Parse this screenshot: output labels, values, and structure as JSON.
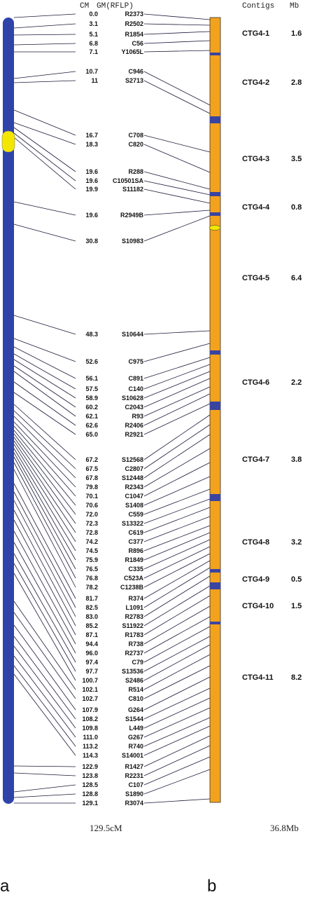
{
  "header": {
    "cm": "CM",
    "gm": "GM(RFLP)",
    "contigs": "Contigs",
    "mb": "Mb"
  },
  "colors": {
    "chromosome": "#2f43a8",
    "contig": "#f4a21d",
    "gap": "#3a44a0",
    "centromere": "#f3e600",
    "line": "#1a1a3a"
  },
  "markers": [
    {
      "cm": "0.0",
      "name": "R2373"
    },
    {
      "cm": "3.1",
      "name": "R2502"
    },
    {
      "cm": "5.1",
      "name": "R1854"
    },
    {
      "cm": "6.8",
      "name": "C56"
    },
    {
      "cm": "7.1",
      "name": "Y1065L"
    },
    {
      "cm": "10.7",
      "name": "C946"
    },
    {
      "cm": "11",
      "name": "S2713"
    },
    {
      "cm": "16.7",
      "name": "C708"
    },
    {
      "cm": "18.3",
      "name": "C820"
    },
    {
      "cm": "19.6",
      "name": "R288"
    },
    {
      "cm": "19.6",
      "name": "C10501SA"
    },
    {
      "cm": "19.9",
      "name": "S11182"
    },
    {
      "cm": "19.6",
      "name": "R2949B"
    },
    {
      "cm": "30.8",
      "name": "S10983"
    },
    {
      "cm": "48.3",
      "name": "S10644"
    },
    {
      "cm": "52.6",
      "name": "C975"
    },
    {
      "cm": "56.1",
      "name": "C891"
    },
    {
      "cm": "57.5",
      "name": "C140"
    },
    {
      "cm": "58.9",
      "name": "S10628"
    },
    {
      "cm": "60.2",
      "name": "C2043"
    },
    {
      "cm": "62.1",
      "name": "R93"
    },
    {
      "cm": "62.6",
      "name": "R2406"
    },
    {
      "cm": "65.0",
      "name": "R2921"
    },
    {
      "cm": "67.2",
      "name": "S12568"
    },
    {
      "cm": "67.5",
      "name": "C2807"
    },
    {
      "cm": "67.8",
      "name": "S12448"
    },
    {
      "cm": "79.8",
      "name": "R2343"
    },
    {
      "cm": "70.1",
      "name": "C1047"
    },
    {
      "cm": "70.6",
      "name": "S1408"
    },
    {
      "cm": "72.0",
      "name": "C559"
    },
    {
      "cm": "72.3",
      "name": "S13322"
    },
    {
      "cm": "72.8",
      "name": "C619"
    },
    {
      "cm": "74.2",
      "name": "C377"
    },
    {
      "cm": "74.5",
      "name": "R896"
    },
    {
      "cm": "75.9",
      "name": "R1849"
    },
    {
      "cm": "76.5",
      "name": "C335"
    },
    {
      "cm": "76.8",
      "name": "C523A"
    },
    {
      "cm": "78.2",
      "name": "C1238B"
    },
    {
      "cm": "81.7",
      "name": "R374"
    },
    {
      "cm": "82.5",
      "name": "L1091"
    },
    {
      "cm": "83.0",
      "name": "R2783"
    },
    {
      "cm": "85.2",
      "name": "S11922"
    },
    {
      "cm": "87.1",
      "name": "R1783"
    },
    {
      "cm": "94.4",
      "name": "R738"
    },
    {
      "cm": "96.0",
      "name": "R2737"
    },
    {
      "cm": "97.4",
      "name": "C79"
    },
    {
      "cm": "97.7",
      "name": "S13536"
    },
    {
      "cm": "100.7",
      "name": "S2486"
    },
    {
      "cm": "102.1",
      "name": "R514"
    },
    {
      "cm": "102.7",
      "name": "C810"
    },
    {
      "cm": "107.9",
      "name": "G264"
    },
    {
      "cm": "108.2",
      "name": "S1544"
    },
    {
      "cm": "109.8",
      "name": "L449"
    },
    {
      "cm": "111.0",
      "name": "G267"
    },
    {
      "cm": "113.2",
      "name": "R740"
    },
    {
      "cm": "114.3",
      "name": "S14001"
    },
    {
      "cm": "122.9",
      "name": "R1427"
    },
    {
      "cm": "123.8",
      "name": "R2231"
    },
    {
      "cm": "128.5",
      "name": "C107"
    },
    {
      "cm": "128.8",
      "name": "S1890"
    },
    {
      "cm": "129.1",
      "name": "R3074"
    }
  ],
  "contigs": [
    {
      "name": "CTG4-1",
      "mb": "1.6"
    },
    {
      "name": "CTG4-2",
      "mb": "2.8"
    },
    {
      "name": "CTG4-3",
      "mb": "3.5"
    },
    {
      "name": "CTG4-4",
      "mb": "0.8"
    },
    {
      "name": "CTG4-5",
      "mb": "6.4"
    },
    {
      "name": "CTG4-6",
      "mb": "2.2"
    },
    {
      "name": "CTG4-7",
      "mb": "3.8"
    },
    {
      "name": "CTG4-8",
      "mb": "3.2"
    },
    {
      "name": "CTG4-9",
      "mb": "0.5"
    },
    {
      "name": "CTG4-10",
      "mb": "1.5"
    },
    {
      "name": "CTG4-11",
      "mb": "8.2"
    }
  ],
  "totals": {
    "genetic": "129.5cM",
    "physical": "36.8Mb"
  },
  "panels": {
    "a": "a",
    "b": "b"
  }
}
